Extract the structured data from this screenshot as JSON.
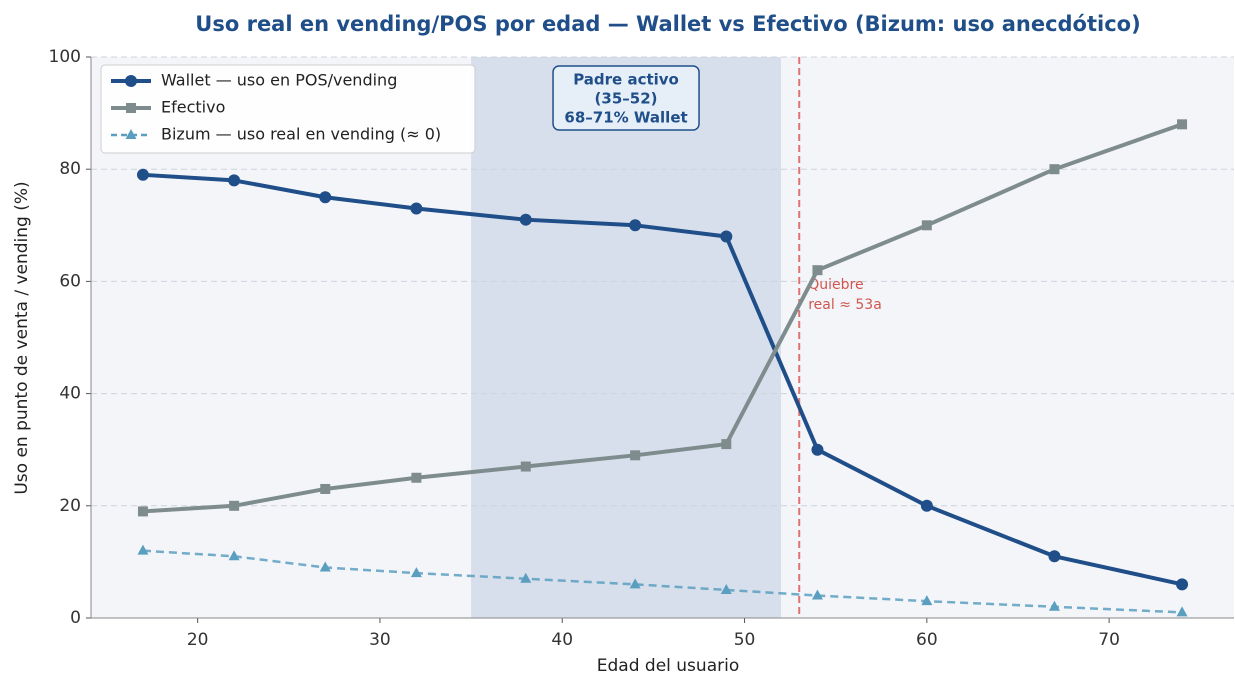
{
  "chart_data": {
    "type": "line",
    "title": "Uso real en vending/POS por edad — Wallet vs Efectivo (Bizum: uso anecdótico)",
    "x_label": "Edad del usuario",
    "y_label": "Uso en punto de venta / vending (%)",
    "x": [
      17,
      22,
      27,
      32,
      38,
      44,
      49,
      54,
      60,
      67,
      74
    ],
    "series": [
      {
        "name": "Wallet — uso en POS/vending",
        "color": "#1f4e89",
        "marker": "circle",
        "dashed": false,
        "values": [
          79,
          78,
          75,
          73,
          71,
          70,
          68,
          30,
          20,
          11,
          6
        ]
      },
      {
        "name": "Efectivo",
        "color": "#7f8c8d",
        "marker": "square",
        "dashed": false,
        "values": [
          19,
          20,
          23,
          25,
          27,
          29,
          31,
          62,
          70,
          80,
          88
        ]
      },
      {
        "name": "Bizum — uso real en vending (≈ 0)",
        "color": "#5a9fc0",
        "marker": "triangle",
        "dashed": true,
        "values": [
          12,
          11,
          9,
          8,
          7,
          6,
          5,
          4,
          3,
          2,
          1
        ]
      }
    ],
    "xlim": [
      14.15,
      76.85
    ],
    "xticks": [
      20,
      30,
      40,
      50,
      60,
      70
    ],
    "ylim": [
      0,
      100
    ],
    "yticks": [
      0,
      20,
      40,
      60,
      80,
      100
    ],
    "grid": true,
    "legend": "upper left",
    "highlight_span": [
      35,
      52
    ],
    "highlight_label": [
      "Padre activo",
      "(35–52)",
      "68–71% Wallet"
    ],
    "threshold": 53,
    "threshold_label": [
      "Quiebre",
      "real ≈ 53a"
    ]
  }
}
